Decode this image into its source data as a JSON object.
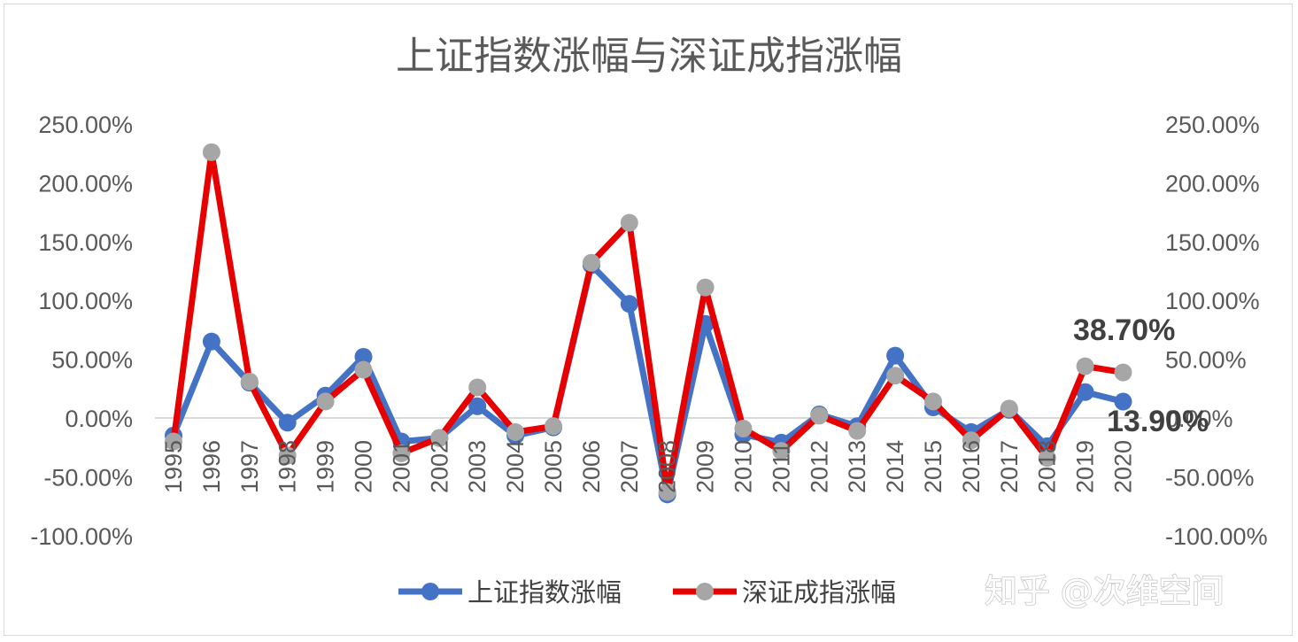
{
  "chart_data": {
    "type": "line",
    "title": "上证指数涨幅与深证成指涨幅",
    "categories": [
      "1995",
      "1996",
      "1997",
      "1998",
      "1999",
      "2000",
      "2001",
      "2002",
      "2003",
      "2004",
      "2005",
      "2006",
      "2007",
      "2008",
      "2009",
      "2010",
      "2011",
      "2012",
      "2013",
      "2014",
      "2015",
      "2016",
      "2017",
      "2018",
      "2019",
      "2020"
    ],
    "series": [
      {
        "name": "上证指数涨幅",
        "color": "#4472c4",
        "axis": "left",
        "values": [
          -15,
          65,
          30,
          -4,
          19,
          52,
          -20,
          -17,
          10,
          -15,
          -8,
          130,
          97,
          -65,
          80,
          -14,
          -21,
          3,
          -7,
          53,
          9,
          -12,
          7,
          -24,
          22,
          13.9
        ]
      },
      {
        "name": "深证成指涨幅",
        "color": "#e60000",
        "marker_color": "#a6a6a6",
        "axis": "right",
        "values": [
          -20,
          226,
          31,
          -32,
          14,
          41,
          -30,
          -17,
          26,
          -12,
          -7,
          132,
          166,
          -63,
          111,
          -9,
          -28,
          2,
          -11,
          36,
          14,
          -19,
          8,
          -34,
          44,
          38.7
        ]
      }
    ],
    "y_left": {
      "ticks": [
        "250.00%",
        "200.00%",
        "150.00%",
        "100.00%",
        "50.00%",
        "0.00%",
        "-50.00%",
        "-100.00%"
      ],
      "range": [
        -100,
        250
      ]
    },
    "y_right": {
      "ticks": [
        "250.00%",
        "200.00%",
        "150.00%",
        "100.00%",
        "50.00%",
        "0.00%",
        "-50.00%",
        "-100.00%"
      ],
      "range": [
        -100,
        250
      ]
    },
    "data_labels": [
      {
        "series": 1,
        "category": "2020",
        "text": "38.70%"
      },
      {
        "series": 0,
        "category": "2020",
        "text": "13.90%"
      }
    ],
    "grid": false,
    "legend_position": "bottom"
  },
  "watermark": "知乎 @次维空间"
}
